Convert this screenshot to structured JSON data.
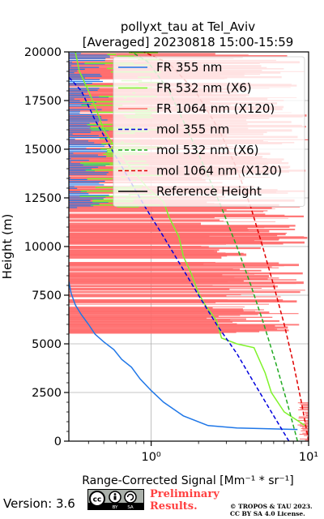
{
  "chart_data": {
    "type": "line",
    "title_line1": "pollyxt_tau at Tel_Aviv",
    "title_line2": "[Averaged] 20230818 15:00-15:59",
    "ylabel": "Height (m)",
    "xlabel": "Range-Corrected Signal [Mm⁻¹ * sr⁻¹]",
    "xscale": "log",
    "xlim": [
      0.3,
      10
    ],
    "ylim": [
      0,
      20000
    ],
    "xticks": [
      1,
      10
    ],
    "xtick_labels": [
      "10⁰",
      "10¹"
    ],
    "yticks": [
      0,
      2500,
      5000,
      7500,
      10000,
      12500,
      15000,
      17500,
      20000
    ],
    "grid": true,
    "legend_position": "top-right",
    "series": [
      {
        "name": "FR 355 nm",
        "color": "#1f77e8",
        "style": "solid",
        "points": [
          [
            8.5,
            600
          ],
          [
            6.0,
            630
          ],
          [
            3.5,
            680
          ],
          [
            2.3,
            800
          ],
          [
            1.6,
            1300
          ],
          [
            1.2,
            2000
          ],
          [
            1.0,
            2600
          ],
          [
            0.85,
            3200
          ],
          [
            0.75,
            3800
          ],
          [
            0.65,
            4200
          ],
          [
            0.58,
            4700
          ],
          [
            0.5,
            5100
          ],
          [
            0.44,
            5500
          ],
          [
            0.4,
            6000
          ],
          [
            0.36,
            6500
          ],
          [
            0.33,
            7000
          ],
          [
            0.31,
            7600
          ],
          [
            0.3,
            8200
          ]
        ]
      },
      {
        "name": "FR 532 nm (X6)",
        "color": "#7ff32a",
        "style": "solid",
        "points": [
          [
            9.5,
            800
          ],
          [
            7.0,
            1500
          ],
          [
            5.8,
            2500
          ],
          [
            5.3,
            3500
          ],
          [
            4.5,
            4800
          ],
          [
            3.5,
            5000
          ],
          [
            2.8,
            5300
          ],
          [
            2.6,
            6200
          ],
          [
            2.2,
            7000
          ],
          [
            2.0,
            7600
          ],
          [
            1.8,
            8600
          ],
          [
            1.6,
            9500
          ],
          [
            1.5,
            10500
          ],
          [
            1.3,
            11500
          ],
          [
            1.2,
            12300
          ],
          [
            0.95,
            13000
          ],
          [
            0.75,
            14000
          ],
          [
            0.6,
            15000
          ],
          [
            0.5,
            16000
          ],
          [
            0.45,
            17000
          ],
          [
            0.4,
            18000
          ],
          [
            0.35,
            19000
          ],
          [
            0.33,
            20000
          ]
        ]
      },
      {
        "name": "FR 1064 nm (X120)",
        "color": "#ff6b6b",
        "style": "solid",
        "points": []
      },
      {
        "name": "mol 355 nm",
        "color": "#0000dd",
        "style": "dashed",
        "points": [
          [
            7.5,
            0
          ],
          [
            5.8,
            1500
          ],
          [
            4.5,
            3000
          ],
          [
            3.5,
            4500
          ],
          [
            2.6,
            6000
          ],
          [
            2.0,
            7500
          ],
          [
            1.55,
            9000
          ],
          [
            1.2,
            10500
          ],
          [
            0.92,
            12000
          ],
          [
            0.72,
            13500
          ],
          [
            0.56,
            15000
          ],
          [
            0.44,
            16500
          ],
          [
            0.36,
            18000
          ],
          [
            0.3,
            18700
          ]
        ]
      },
      {
        "name": "mol 532 nm (X6)",
        "color": "#22aa22",
        "style": "dashed",
        "points": [
          [
            8.5,
            0
          ],
          [
            7.3,
            2000
          ],
          [
            6.2,
            4000
          ],
          [
            5.2,
            6000
          ],
          [
            4.3,
            8000
          ],
          [
            3.5,
            10000
          ],
          [
            2.8,
            12000
          ],
          [
            2.2,
            14000
          ],
          [
            1.7,
            16000
          ],
          [
            1.3,
            18000
          ],
          [
            0.95,
            19500
          ],
          [
            0.75,
            20000
          ]
        ]
      },
      {
        "name": "mol 1064 nm (X120)",
        "color": "#e00000",
        "style": "dashed",
        "points": [
          [
            10,
            0
          ],
          [
            9.0,
            2000
          ],
          [
            8.0,
            4000
          ],
          [
            7.0,
            6000
          ],
          [
            6.0,
            8000
          ],
          [
            5.1,
            10000
          ],
          [
            4.3,
            12000
          ],
          [
            3.5,
            14000
          ],
          [
            2.7,
            16000
          ],
          [
            1.9,
            18000
          ],
          [
            1.3,
            19400
          ],
          [
            0.9,
            20000
          ]
        ]
      },
      {
        "name": "Reference Height",
        "color": "#000000",
        "style": "solid",
        "points": []
      }
    ]
  },
  "footer": {
    "version": "Version: 3.6",
    "license_badge": "cc-by-sa-icon",
    "preliminary_line1": "Preliminary",
    "preliminary_line2": "Results.",
    "copyright_line1": "© TROPOS & TAU 2023.",
    "copyright_line2": "CC BY SA 4.0 License."
  }
}
